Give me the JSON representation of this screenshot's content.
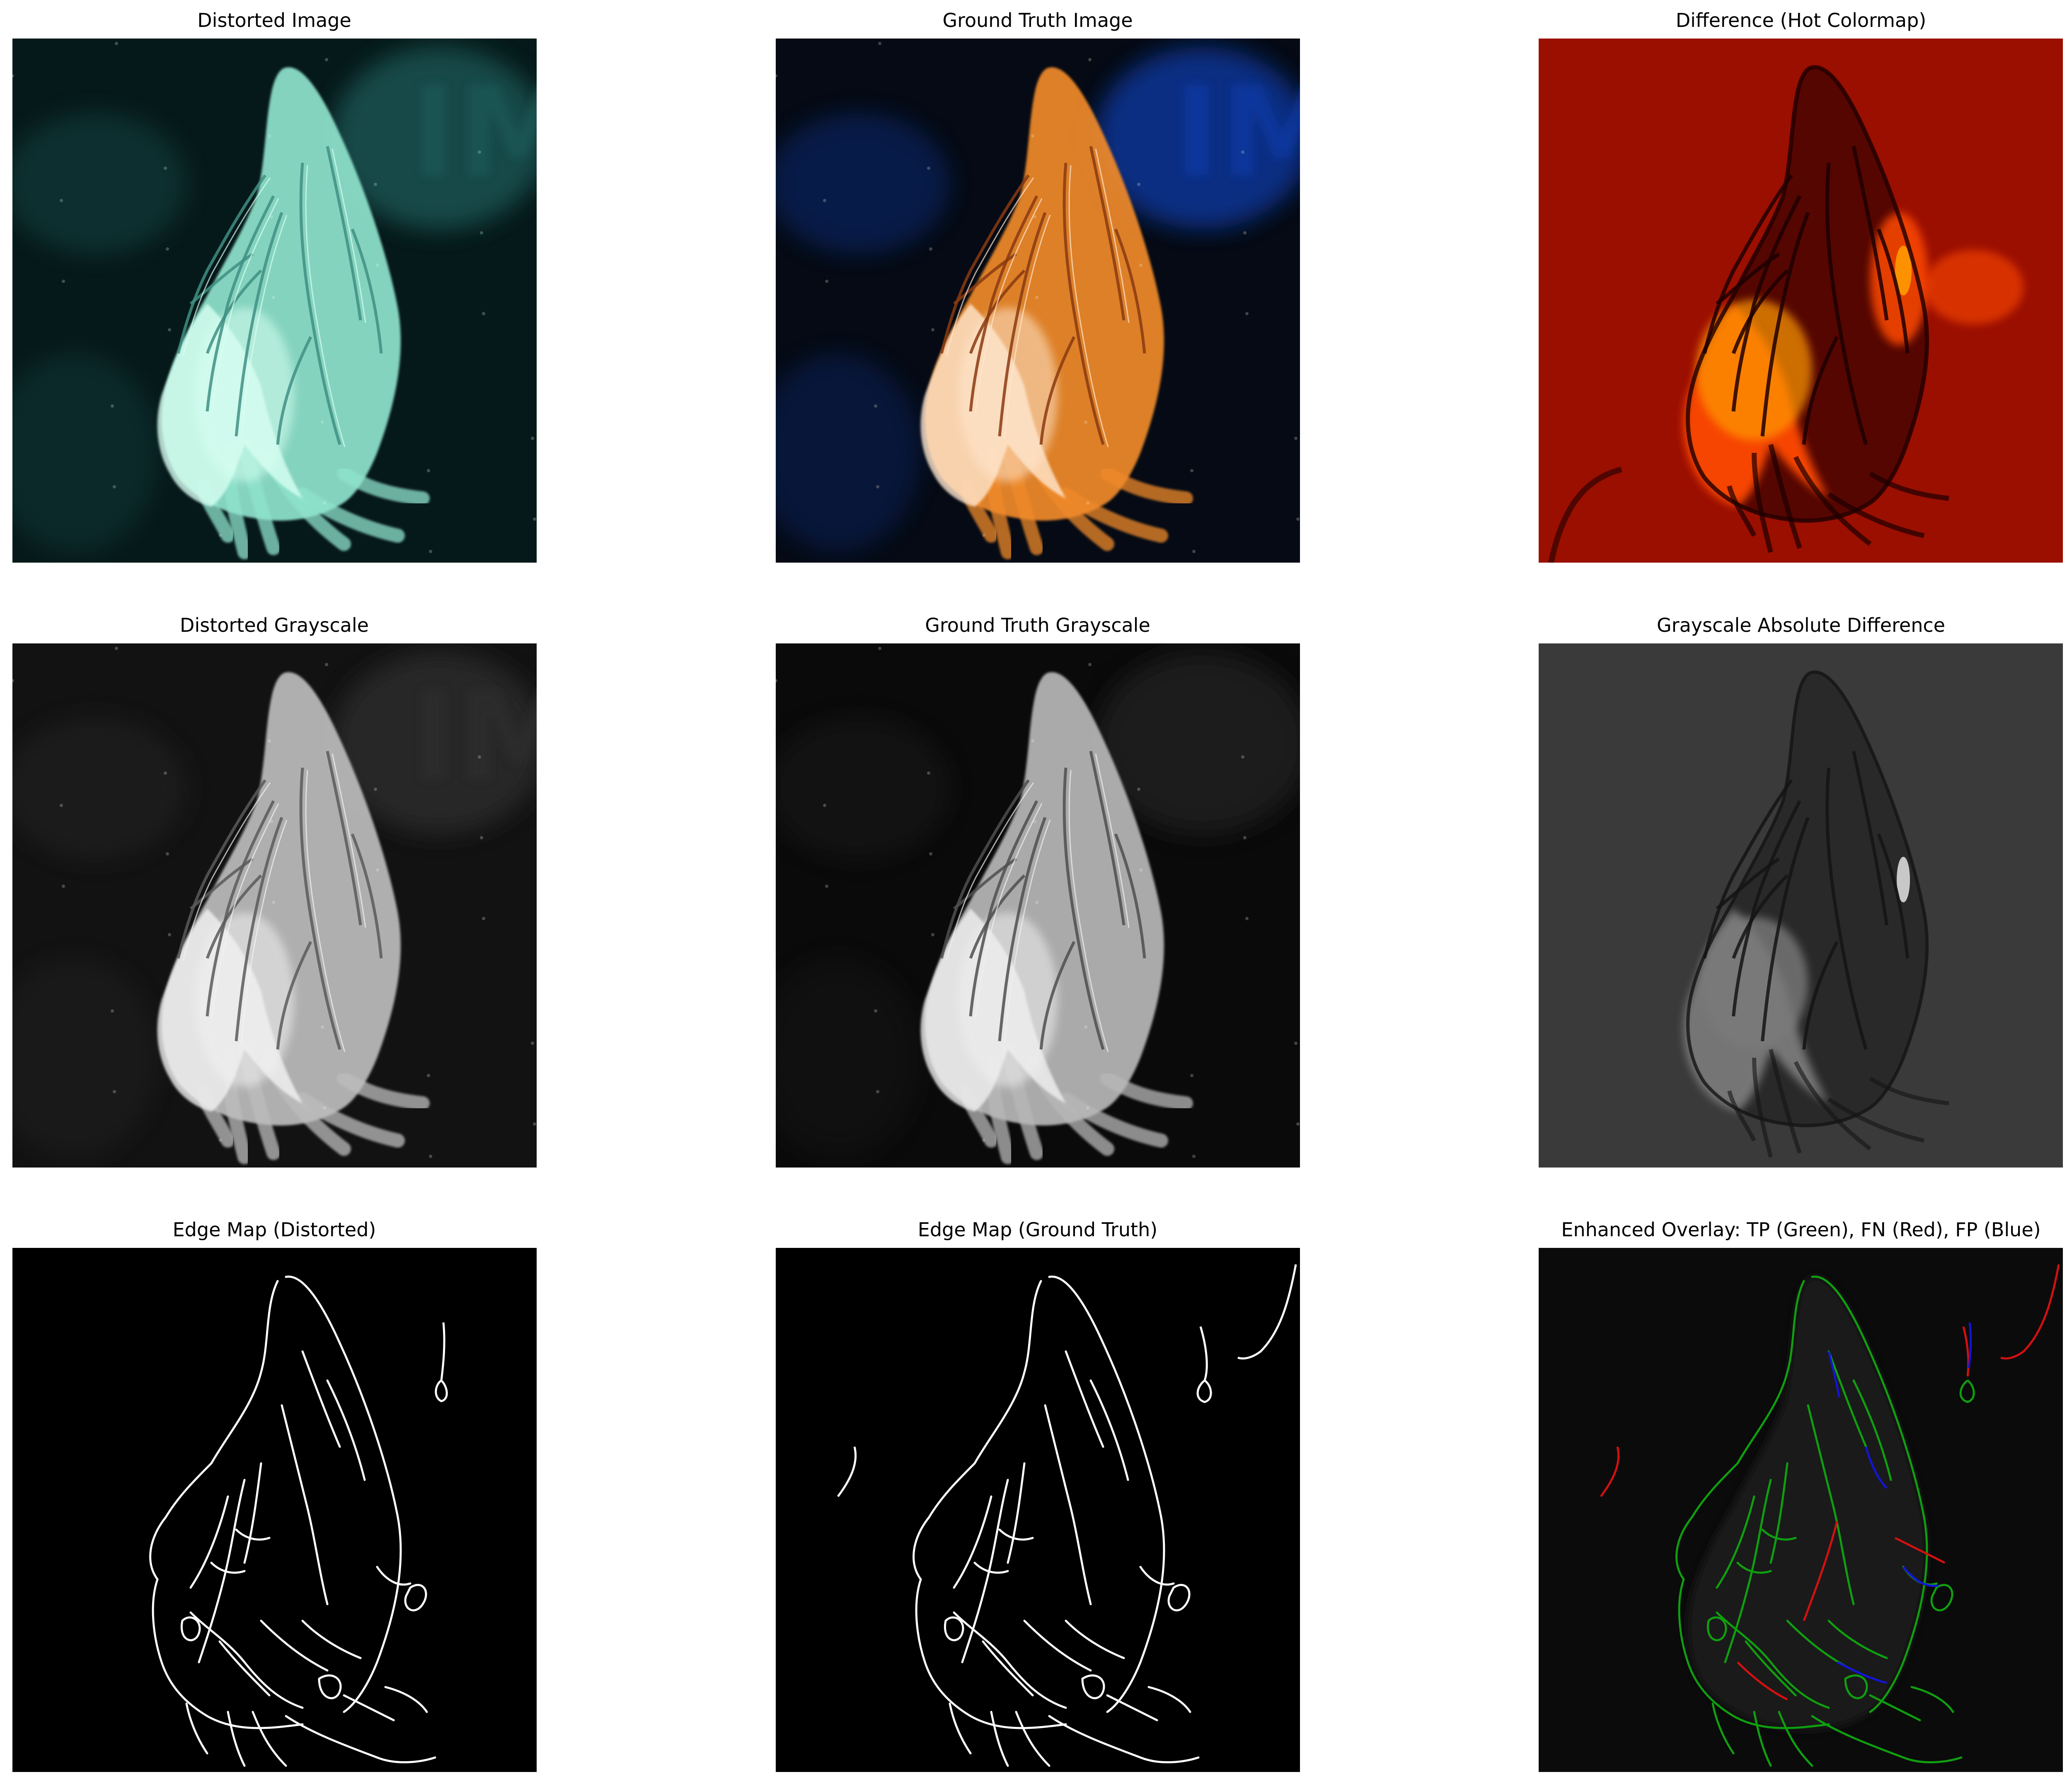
{
  "figure": {
    "background": "#ffffff",
    "panels": [
      {
        "title": "Distorted Image",
        "kind": "color",
        "tint": "teal",
        "colors": {
          "bg": "#06191a",
          "glow": "#1b5a58",
          "body": "#8fe3cc",
          "highlight": "#d8fff2",
          "stroke": "#3f8f84"
        },
        "letters": "IM"
      },
      {
        "title": "Ground Truth Image",
        "kind": "color",
        "tint": "orange",
        "colors": {
          "bg": "#050a14",
          "glow": "#0d3aa8",
          "body": "#f08a2c",
          "highlight": "#ffe7cf",
          "stroke": "#8a3a10"
        },
        "letters": "IM"
      },
      {
        "title": "Difference (Hot Colormap)",
        "kind": "hot",
        "colors": {
          "bg": "#c41400",
          "hot": "#ff4a00",
          "hotter": "#ff9a00",
          "dark": "#1e0000"
        }
      },
      {
        "title": "Distorted Grayscale",
        "kind": "gray",
        "colors": {
          "bg": "#121212",
          "glow": "#2d2d2d",
          "body": "#bdbdbd",
          "highlight": "#f2f2f2",
          "stroke": "#5a5a5a"
        },
        "letters": "IM"
      },
      {
        "title": "Ground Truth Grayscale",
        "kind": "gray",
        "colors": {
          "bg": "#0a0a0a",
          "glow": "#202020",
          "body": "#b8b8b8",
          "highlight": "#f0f0f0",
          "stroke": "#4f4f4f"
        }
      },
      {
        "title": "Grayscale Absolute Difference",
        "kind": "graydiff",
        "colors": {
          "bg": "#3a3a3a",
          "body": "#7a7a7a",
          "dark": "#141414",
          "light": "#d9d9d9"
        }
      },
      {
        "title": "Edge Map (Distorted)",
        "kind": "edges",
        "colors": {
          "bg": "#000000",
          "edge": "#ffffff"
        }
      },
      {
        "title": "Edge Map (Ground Truth)",
        "kind": "edges",
        "colors": {
          "bg": "#000000",
          "edge": "#ffffff"
        }
      },
      {
        "title": "Enhanced Overlay: TP (Green), FN (Red), FP (Blue)",
        "kind": "overlay",
        "colors": {
          "bg": "#0b0b0b",
          "body": "#1e1e1e",
          "tp": "#0f9f0f",
          "fn": "#d41010",
          "fp": "#1414d8"
        }
      }
    ]
  }
}
